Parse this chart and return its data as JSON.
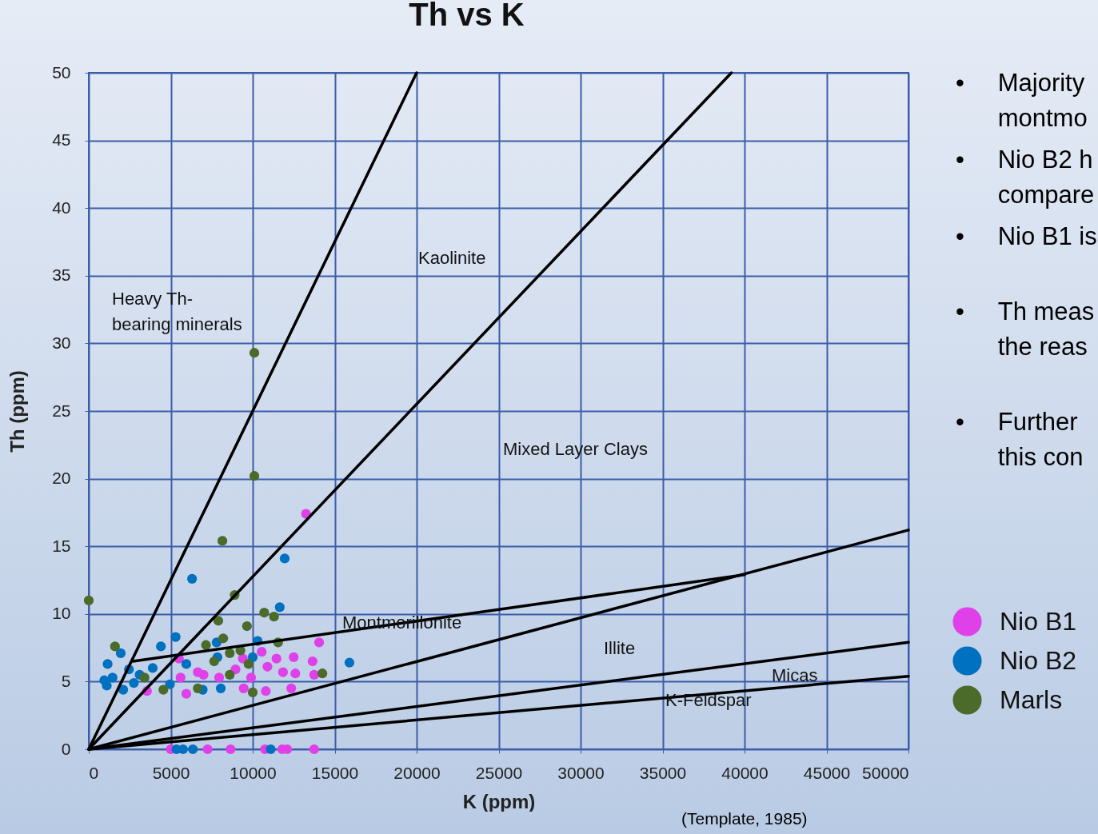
{
  "chart_data": {
    "type": "scatter",
    "title": "Th vs K",
    "xlabel": "K (ppm)",
    "ylabel": "Th (ppm)",
    "xlim": [
      0,
      50000
    ],
    "xticks": [
      0,
      5000,
      10000,
      15000,
      20000,
      25000,
      30000,
      35000,
      40000,
      45000,
      50000
    ],
    "ylim": [
      0,
      50
    ],
    "yticks": [
      0,
      5,
      10,
      15,
      20,
      25,
      30,
      35,
      40,
      45,
      50
    ],
    "grid": true,
    "legend": "right",
    "marker": "circle",
    "series": [
      {
        "name": "Nio B1",
        "color": "#e040e8",
        "x": [
          3550,
          5000,
          5500,
          5600,
          5950,
          6650,
          7000,
          7250,
          7950,
          8650,
          8950,
          9400,
          9450,
          9900,
          10550,
          10750,
          10800,
          10900,
          11450,
          11800,
          11850,
          12100,
          12350,
          12500,
          12600,
          13250,
          13650,
          13750,
          13750,
          14050
        ],
        "values": [
          4.3,
          0,
          6.7,
          5.3,
          4.1,
          5.7,
          5.5,
          0,
          5.3,
          0,
          5.9,
          6.7,
          4.5,
          5.3,
          7.2,
          0,
          4.3,
          6.1,
          6.7,
          0,
          5.7,
          0,
          4.5,
          6.8,
          5.6,
          17.4,
          6.5,
          5.5,
          0,
          7.9
        ]
      },
      {
        "name": "Nio B2",
        "color": "#0070c0",
        "x": [
          950,
          1100,
          1150,
          1450,
          1950,
          2100,
          2450,
          2750,
          3100,
          3900,
          4400,
          4950,
          5300,
          5350,
          5750,
          5950,
          6300,
          6350,
          6950,
          7800,
          7850,
          8050,
          10000,
          10300,
          11100,
          11650,
          11950,
          15900
        ],
        "values": [
          5.1,
          4.7,
          6.3,
          5.3,
          7.1,
          4.4,
          5.9,
          4.9,
          5.5,
          6.0,
          7.6,
          4.8,
          8.3,
          0,
          0,
          6.3,
          12.6,
          0,
          4.4,
          7.9,
          6.8,
          4.5,
          6.8,
          8.0,
          0,
          10.5,
          14.1,
          6.4
        ]
      },
      {
        "name": "Marls",
        "color": "#4a6b2a",
        "x": [
          0,
          1600,
          3400,
          4550,
          6650,
          7150,
          7650,
          7900,
          8150,
          8200,
          8600,
          8600,
          8900,
          9250,
          9650,
          9750,
          10000,
          10100,
          10100,
          10700,
          11300,
          11550,
          14250
        ],
        "values": [
          11.0,
          7.6,
          5.3,
          4.4,
          4.5,
          7.7,
          6.5,
          9.5,
          15.4,
          8.2,
          7.1,
          5.5,
          11.4,
          7.3,
          9.1,
          6.3,
          4.2,
          20.2,
          29.3,
          10.1,
          9.8,
          7.9,
          5.6
        ]
      },
      {
        "type": "line",
        "marker": "none",
        "color": "#000000",
        "x": [
          0,
          20000
        ],
        "values": [
          0,
          50
        ]
      },
      {
        "type": "line",
        "marker": "none",
        "color": "#000000",
        "x": [
          0,
          39200
        ],
        "values": [
          0,
          50
        ]
      },
      {
        "type": "line",
        "marker": "none",
        "color": "#000000",
        "x": [
          2700,
          40000
        ],
        "values": [
          6.5,
          12.9
        ]
      },
      {
        "type": "line",
        "marker": "none",
        "color": "#000000",
        "x": [
          0,
          50000
        ],
        "values": [
          0,
          16.2
        ]
      },
      {
        "type": "line",
        "marker": "none",
        "color": "#000000",
        "x": [
          0,
          50000
        ],
        "values": [
          0,
          7.9
        ]
      },
      {
        "type": "line",
        "marker": "none",
        "color": "#000000",
        "x": [
          0,
          50000
        ],
        "values": [
          0,
          5.4
        ]
      }
    ],
    "annotations": [
      "Heavy Th-\nbearing minerals",
      "Kaolinite",
      "Mixed Layer Clays",
      "Montmorillonite",
      "Illite",
      "Micas",
      "K-Feldspar",
      "•\tMajority\n\tmontmo",
      "•\tNio B2 h\n\tcompare",
      "•\tNio B1 is",
      "•\tTh meas\n\tthe reas",
      "•\tFurther\n\tthis con",
      "(Template, 1985)"
    ]
  }
}
